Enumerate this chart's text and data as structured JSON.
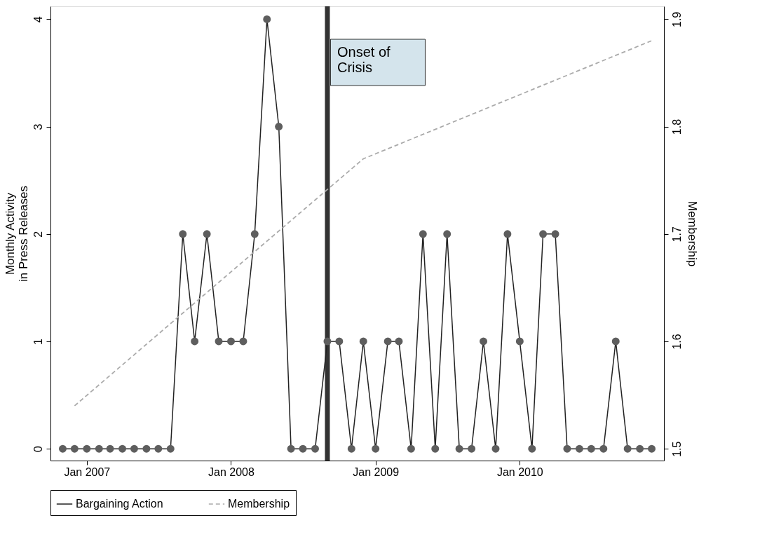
{
  "chart_data": {
    "type": "line",
    "ylabel": "Monthly Activity\nin Press Releases",
    "y2label": "Membership",
    "xlim": [
      "2006-10-01",
      "2011-01-01"
    ],
    "xticks": [
      {
        "value": "2007-01",
        "label": "Jan 2007"
      },
      {
        "value": "2008-01",
        "label": "Jan 2008"
      },
      {
        "value": "2009-01",
        "label": "Jan 2009"
      },
      {
        "value": "2010-01",
        "label": "Jan 2010"
      }
    ],
    "ylim": [
      -0.11,
      4.12
    ],
    "yticks": [
      0,
      1,
      2,
      3,
      4
    ],
    "y2lim": [
      1.489,
      1.912
    ],
    "y2ticks": [
      1.5,
      1.6,
      1.7,
      1.8,
      1.9
    ],
    "grid": false,
    "legend": "bottom",
    "series": [
      {
        "name": "Bargaining Action",
        "color": "#222222",
        "marker": "circle",
        "line_style": "solid",
        "x": [
          "2006-11",
          "2006-12",
          "2007-01",
          "2007-02",
          "2007-03",
          "2007-04",
          "2007-05",
          "2007-06",
          "2007-07",
          "2007-08",
          "2007-09",
          "2007-10",
          "2007-11",
          "2007-12",
          "2008-01",
          "2008-02",
          "2008-03",
          "2008-04",
          "2008-05",
          "2008-06",
          "2008-07",
          "2008-08",
          "2008-09",
          "2008-10",
          "2008-11",
          "2008-12",
          "2009-01",
          "2009-02",
          "2009-03",
          "2009-04",
          "2009-05",
          "2009-06",
          "2009-07",
          "2009-08",
          "2009-09",
          "2009-10",
          "2009-11",
          "2009-12",
          "2010-01",
          "2010-02",
          "2010-03",
          "2010-04",
          "2010-05",
          "2010-06",
          "2010-07",
          "2010-08",
          "2010-09",
          "2010-10",
          "2010-11",
          "2010-12"
        ],
        "values": [
          0,
          0,
          0,
          0,
          0,
          0,
          0,
          0,
          0,
          0,
          2,
          1,
          2,
          1,
          1,
          1,
          2,
          4,
          3,
          0,
          0,
          0,
          1,
          1,
          0,
          1,
          0,
          1,
          1,
          0,
          2,
          0,
          2,
          0,
          0,
          1,
          0,
          2,
          1,
          0,
          2,
          2,
          0,
          0,
          0,
          0,
          1,
          0,
          0,
          0
        ]
      },
      {
        "name": "Membership",
        "color": "#aaaaaa",
        "marker": "none",
        "line_style": "dashed",
        "axis": "y2",
        "x": [
          "2006-12",
          "2007-12",
          "2008-12",
          "2009-12",
          "2010-12"
        ],
        "values": [
          1.54,
          1.655,
          1.77,
          1.825,
          1.88
        ]
      }
    ],
    "ref_lines": [
      {
        "axis": "x",
        "value": "2008-09",
        "label": "Onset of\nCrisis",
        "color": "#333333"
      }
    ]
  }
}
